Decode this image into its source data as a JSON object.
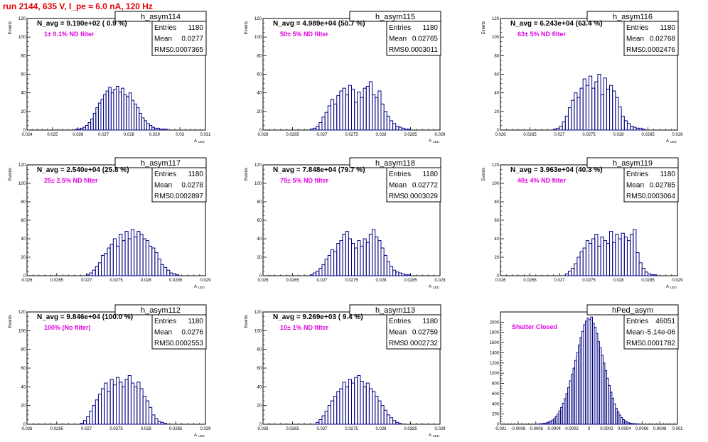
{
  "page_title": "run 2144,   635 V, I_pe ≈ 6.0 nA, 120 Hz",
  "stats_labels": [
    "Entries",
    "Mean",
    "RMS"
  ],
  "colors": {
    "histogram": "#000080",
    "annotation": "#e000e0",
    "title": "#e00000",
    "axis": "#000000"
  },
  "chart_data": [
    {
      "type": "bar",
      "title": "h_asym114",
      "navg": "N_avg = 9.190e+02 ( 0.9 %)",
      "note": "1± 0.1% ND filter",
      "stats": {
        "Entries": "1180",
        "Mean": "0.0277",
        "RMS": "0.0007365"
      },
      "ylabel": "Events",
      "xlabel": "A",
      "xlabel_sub": "LED",
      "xlim": [
        0.024,
        0.031
      ],
      "ylim": [
        0,
        120
      ],
      "xticks": [
        0.024,
        0.025,
        0.026,
        0.027,
        0.028,
        0.029,
        0.03,
        0.031
      ],
      "xtick_labels": [
        "0.024",
        "0.025",
        "0.026",
        "0.027",
        "0.028",
        "0.029",
        "0.03",
        "0.031"
      ],
      "yticks": [
        0,
        20,
        40,
        60,
        80,
        100,
        120
      ],
      "ytick_labels": [
        "0",
        "20",
        "40",
        "60",
        "80",
        "100",
        "120"
      ],
      "bins_x": [
        0.0259,
        0.026,
        0.0261,
        0.0262,
        0.0263,
        0.0264,
        0.0265,
        0.0266,
        0.0267,
        0.0268,
        0.0269,
        0.027,
        0.0271,
        0.0272,
        0.0273,
        0.0274,
        0.0275,
        0.0276,
        0.0277,
        0.0278,
        0.0279,
        0.028,
        0.0281,
        0.0282,
        0.0283,
        0.0284,
        0.0285,
        0.0286,
        0.0287,
        0.0288,
        0.0289,
        0.029,
        0.0291,
        0.0292,
        0.0293,
        0.0294,
        0.0295
      ],
      "counts": [
        1,
        1,
        2,
        3,
        5,
        8,
        12,
        18,
        24,
        29,
        33,
        38,
        42,
        46,
        40,
        44,
        47,
        41,
        45,
        38,
        36,
        40,
        32,
        28,
        24,
        18,
        13,
        10,
        7,
        5,
        3,
        2,
        2,
        1,
        1,
        1,
        0
      ],
      "bin_width": 0.0001
    },
    {
      "type": "bar",
      "title": "h_asym115",
      "navg": "N_avg = 4.989e+04 (50.7 %)",
      "note": "50± 5% ND filter",
      "stats": {
        "Entries": "1180",
        "Mean": "0.02765",
        "RMS": "0.0003011"
      },
      "ylabel": "Events",
      "xlabel": "A",
      "xlabel_sub": "LED",
      "xlim": [
        0.026,
        0.029
      ],
      "ylim": [
        0,
        120
      ],
      "xticks": [
        0.026,
        0.0265,
        0.027,
        0.0275,
        0.028,
        0.0285,
        0.029
      ],
      "xtick_labels": [
        "0.026",
        "0.0265",
        "0.027",
        "0.0275",
        "0.028",
        "0.0285",
        "0.029"
      ],
      "yticks": [
        0,
        20,
        40,
        60,
        80,
        100,
        120
      ],
      "ytick_labels": [
        "0",
        "20",
        "40",
        "60",
        "80",
        "100",
        "120"
      ],
      "bins_x": [
        0.0268,
        0.02685,
        0.0269,
        0.02695,
        0.027,
        0.02705,
        0.0271,
        0.02715,
        0.0272,
        0.02725,
        0.0273,
        0.02735,
        0.0274,
        0.02745,
        0.0275,
        0.02755,
        0.0276,
        0.02765,
        0.0277,
        0.02775,
        0.0278,
        0.02785,
        0.0279,
        0.02795,
        0.028,
        0.02805,
        0.0281,
        0.02815,
        0.0282,
        0.02825,
        0.0283,
        0.02835,
        0.0284,
        0.02845
      ],
      "counts": [
        1,
        2,
        4,
        8,
        14,
        19,
        26,
        33,
        28,
        37,
        42,
        45,
        38,
        48,
        44,
        30,
        41,
        35,
        45,
        47,
        52,
        38,
        35,
        42,
        28,
        20,
        15,
        10,
        7,
        4,
        3,
        2,
        1,
        1
      ],
      "bin_width": 5e-05
    },
    {
      "type": "bar",
      "title": "h_asym116",
      "navg": "N_avg = 6.243e+04 (63.4 %)",
      "note": "63± 5% ND filter",
      "stats": {
        "Entries": "1180",
        "Mean": "0.02768",
        "RMS": "0.0002476"
      },
      "ylabel": "Events",
      "xlabel": "A",
      "xlabel_sub": "LED",
      "xlim": [
        0.026,
        0.029
      ],
      "ylim": [
        0,
        120
      ],
      "xticks": [
        0.026,
        0.0265,
        0.027,
        0.0275,
        0.028,
        0.0285,
        0.029
      ],
      "xtick_labels": [
        "0.026",
        "0.0265",
        "0.027",
        "0.0275",
        "0.028",
        "0.0285",
        "0.029"
      ],
      "yticks": [
        0,
        20,
        40,
        60,
        80,
        100,
        120
      ],
      "ytick_labels": [
        "0",
        "20",
        "40",
        "60",
        "80",
        "100",
        "120"
      ],
      "bins_x": [
        0.0269,
        0.02695,
        0.027,
        0.02705,
        0.0271,
        0.02715,
        0.0272,
        0.02725,
        0.0273,
        0.02735,
        0.0274,
        0.02745,
        0.0275,
        0.02755,
        0.0276,
        0.02765,
        0.0277,
        0.02775,
        0.0278,
        0.02785,
        0.0279,
        0.02795,
        0.028,
        0.02805,
        0.0281,
        0.02815,
        0.0282,
        0.02825,
        0.0283,
        0.02835,
        0.0284,
        0.02845
      ],
      "counts": [
        1,
        2,
        4,
        9,
        15,
        24,
        32,
        40,
        35,
        45,
        55,
        48,
        58,
        45,
        52,
        60,
        38,
        56,
        44,
        48,
        42,
        35,
        25,
        15,
        10,
        7,
        4,
        3,
        2,
        2,
        1,
        0
      ],
      "bin_width": 5e-05
    },
    {
      "type": "bar",
      "title": "h_asym117",
      "navg": "N_avg = 2.540e+04 (25.8 %)",
      "note": "25± 2.5% ND filter",
      "stats": {
        "Entries": "1180",
        "Mean": "0.0278",
        "RMS": "0.0002897"
      },
      "ylabel": "Events",
      "xlabel": "A",
      "xlabel_sub": "LED",
      "xlim": [
        0.026,
        0.029
      ],
      "ylim": [
        0,
        120
      ],
      "xticks": [
        0.026,
        0.0265,
        0.027,
        0.0275,
        0.028,
        0.0285,
        0.029
      ],
      "xtick_labels": [
        "0.026",
        "0.0265",
        "0.027",
        "0.0275",
        "0.028",
        "0.0285",
        "0.029"
      ],
      "yticks": [
        0,
        20,
        40,
        60,
        80,
        100,
        120
      ],
      "ytick_labels": [
        "0",
        "20",
        "40",
        "60",
        "80",
        "100",
        "120"
      ],
      "bins_x": [
        0.027,
        0.02705,
        0.0271,
        0.02715,
        0.0272,
        0.02725,
        0.0273,
        0.02735,
        0.0274,
        0.02745,
        0.0275,
        0.02755,
        0.0276,
        0.02765,
        0.0277,
        0.02775,
        0.0278,
        0.02785,
        0.0279,
        0.02795,
        0.028,
        0.02805,
        0.0281,
        0.02815,
        0.0282,
        0.02825,
        0.0283,
        0.02835,
        0.0284,
        0.02845,
        0.0285
      ],
      "counts": [
        1,
        3,
        6,
        10,
        14,
        22,
        24,
        30,
        34,
        40,
        32,
        45,
        38,
        48,
        40,
        50,
        42,
        48,
        45,
        40,
        38,
        32,
        30,
        25,
        18,
        12,
        9,
        6,
        3,
        2,
        1
      ],
      "bin_width": 5e-05
    },
    {
      "type": "bar",
      "title": "h_asym118",
      "navg": "N_avg = 7.848e+04 (79.7 %)",
      "note": "79± 5% ND filter",
      "stats": {
        "Entries": "1180",
        "Mean": "0.02772",
        "RMS": "0.0003029"
      },
      "ylabel": "Events",
      "xlabel": "A",
      "xlabel_sub": "LED",
      "xlim": [
        0.026,
        0.029
      ],
      "ylim": [
        0,
        120
      ],
      "xticks": [
        0.026,
        0.0265,
        0.027,
        0.0275,
        0.028,
        0.0285,
        0.029
      ],
      "xtick_labels": [
        "0.026",
        "0.0265",
        "0.027",
        "0.0275",
        "0.028",
        "0.0285",
        "0.029"
      ],
      "yticks": [
        0,
        20,
        40,
        60,
        80,
        100,
        120
      ],
      "ytick_labels": [
        "0",
        "20",
        "40",
        "60",
        "80",
        "100",
        "120"
      ],
      "bins_x": [
        0.0268,
        0.02685,
        0.0269,
        0.02695,
        0.027,
        0.02705,
        0.0271,
        0.02715,
        0.0272,
        0.02725,
        0.0273,
        0.02735,
        0.0274,
        0.02745,
        0.0275,
        0.02755,
        0.0276,
        0.02765,
        0.0277,
        0.02775,
        0.0278,
        0.02785,
        0.0279,
        0.02795,
        0.028,
        0.02805,
        0.0281,
        0.02815,
        0.0282,
        0.02825,
        0.0283,
        0.02835,
        0.0284,
        0.02845,
        0.0285
      ],
      "counts": [
        1,
        3,
        5,
        8,
        12,
        18,
        22,
        28,
        26,
        35,
        38,
        45,
        48,
        40,
        35,
        30,
        38,
        32,
        40,
        36,
        45,
        50,
        42,
        38,
        30,
        22,
        15,
        10,
        6,
        4,
        3,
        2,
        1,
        1,
        0
      ],
      "bin_width": 5e-05
    },
    {
      "type": "bar",
      "title": "h_asym119",
      "navg": "N_avg = 3.963e+04 (40.3 %)",
      "note": "40± 4% ND filter",
      "stats": {
        "Entries": "1180",
        "Mean": "0.02785",
        "RMS": "0.0003064"
      },
      "ylabel": "Events",
      "xlabel": "A",
      "xlabel_sub": "LED",
      "xlim": [
        0.026,
        0.029
      ],
      "ylim": [
        0,
        120
      ],
      "xticks": [
        0.026,
        0.0265,
        0.027,
        0.0275,
        0.028,
        0.0285,
        0.029
      ],
      "xtick_labels": [
        "0.026",
        "0.0265",
        "0.027",
        "0.0275",
        "0.028",
        "0.0285",
        "0.029"
      ],
      "yticks": [
        0,
        20,
        40,
        60,
        80,
        100,
        120
      ],
      "ytick_labels": [
        "0",
        "20",
        "40",
        "60",
        "80",
        "100",
        "120"
      ],
      "bins_x": [
        0.0271,
        0.02715,
        0.0272,
        0.02725,
        0.0273,
        0.02735,
        0.0274,
        0.02745,
        0.0275,
        0.02755,
        0.0276,
        0.02765,
        0.0277,
        0.02775,
        0.0278,
        0.02785,
        0.0279,
        0.02795,
        0.028,
        0.02805,
        0.0281,
        0.02815,
        0.0282,
        0.02825,
        0.0283,
        0.02835,
        0.0284,
        0.02845,
        0.0285,
        0.02855,
        0.0286
      ],
      "counts": [
        2,
        5,
        8,
        13,
        20,
        26,
        30,
        38,
        35,
        40,
        45,
        32,
        42,
        38,
        35,
        48,
        36,
        45,
        40,
        46,
        42,
        38,
        45,
        50,
        25,
        14,
        8,
        4,
        2,
        1,
        1
      ],
      "bin_width": 5e-05
    },
    {
      "type": "bar",
      "title": "h_asym112",
      "navg": "N_avg = 9.846e+04 (100.0 %)",
      "note": "100% (No filter)",
      "stats": {
        "Entries": "1180",
        "Mean": "0.0276",
        "RMS": "0.0002553"
      },
      "ylabel": "Events",
      "xlabel": "A",
      "xlabel_sub": "LED",
      "xlim": [
        0.026,
        0.029
      ],
      "ylim": [
        0,
        120
      ],
      "xticks": [
        0.026,
        0.0265,
        0.027,
        0.0275,
        0.028,
        0.0285,
        0.029
      ],
      "xtick_labels": [
        "0.026",
        "0.0265",
        "0.027",
        "0.0275",
        "0.028",
        "0.0285",
        "0.029"
      ],
      "yticks": [
        0,
        20,
        40,
        60,
        80,
        100,
        120
      ],
      "ytick_labels": [
        "0",
        "20",
        "40",
        "60",
        "80",
        "100",
        "120"
      ],
      "bins_x": [
        0.0269,
        0.02695,
        0.027,
        0.02705,
        0.0271,
        0.02715,
        0.0272,
        0.02725,
        0.0273,
        0.02735,
        0.0274,
        0.02745,
        0.0275,
        0.02755,
        0.0276,
        0.02765,
        0.0277,
        0.02775,
        0.0278,
        0.02785,
        0.0279,
        0.02795,
        0.028,
        0.02805,
        0.0281,
        0.02815,
        0.0282,
        0.02825,
        0.0283
      ],
      "counts": [
        1,
        4,
        8,
        14,
        20,
        26,
        32,
        38,
        44,
        35,
        48,
        42,
        50,
        45,
        40,
        48,
        52,
        44,
        40,
        45,
        38,
        30,
        25,
        18,
        10,
        6,
        3,
        2,
        1
      ],
      "bin_width": 5e-05
    },
    {
      "type": "bar",
      "title": "h_asym113",
      "navg": "N_avg = 9.269e+03 ( 9.4 %)",
      "note": "10± 1% ND filter",
      "stats": {
        "Entries": "1180",
        "Mean": "0.02759",
        "RMS": "0.0002732"
      },
      "ylabel": "Events",
      "xlabel": "A",
      "xlabel_sub": "LED",
      "xlim": [
        0.026,
        0.029
      ],
      "ylim": [
        0,
        120
      ],
      "xticks": [
        0.026,
        0.0265,
        0.027,
        0.0275,
        0.028,
        0.0285,
        0.029
      ],
      "xtick_labels": [
        "0.026",
        "0.0265",
        "0.027",
        "0.0275",
        "0.028",
        "0.0285",
        "0.029"
      ],
      "yticks": [
        0,
        20,
        40,
        60,
        80,
        100,
        120
      ],
      "ytick_labels": [
        "0",
        "20",
        "40",
        "60",
        "80",
        "100",
        "120"
      ],
      "bins_x": [
        0.0269,
        0.02695,
        0.027,
        0.02705,
        0.0271,
        0.02715,
        0.0272,
        0.02725,
        0.0273,
        0.02735,
        0.0274,
        0.02745,
        0.0275,
        0.02755,
        0.0276,
        0.02765,
        0.0277,
        0.02775,
        0.0278,
        0.02785,
        0.0279,
        0.02795,
        0.028,
        0.02805,
        0.0281,
        0.02815,
        0.0282,
        0.02825,
        0.0283
      ],
      "counts": [
        2,
        5,
        9,
        14,
        20,
        25,
        30,
        35,
        38,
        45,
        40,
        48,
        44,
        50,
        52,
        46,
        40,
        44,
        38,
        35,
        30,
        25,
        20,
        15,
        10,
        7,
        4,
        2,
        1
      ],
      "bin_width": 5e-05
    },
    {
      "type": "bar",
      "title": "hPed_asym",
      "navg": "",
      "note": "Shutter Closed",
      "stats": {
        "Entries": "46051",
        "Mean": "-5.14e-06",
        "RMS": "0.0001782"
      },
      "ylabel": "",
      "xlabel": "",
      "xlabel_sub": "",
      "xlim": [
        -0.001,
        0.001
      ],
      "ylim": [
        0,
        2200
      ],
      "xticks": [
        -0.001,
        -0.0008,
        -0.0006,
        -0.0004,
        -0.0002,
        0,
        0.0002,
        0.0004,
        0.0006,
        0.0008,
        0.001
      ],
      "xtick_labels": [
        "-0.001",
        "-0.0008",
        "-0.0006",
        "-0.0004",
        "-0.0002",
        "0",
        "0.0002",
        "0.0004",
        "0.0006",
        "0.0008",
        "0.001"
      ],
      "yticks": [
        0,
        200,
        400,
        600,
        800,
        1000,
        1200,
        1400,
        1600,
        1800,
        2000
      ],
      "ytick_labels": [
        "0",
        "200",
        "400",
        "600",
        "800",
        "1000",
        "1200",
        "1400",
        "1600",
        "1800",
        "2000"
      ],
      "bins_x": [
        -0.0006,
        -0.00058,
        -0.00056,
        -0.00054,
        -0.00052,
        -0.0005,
        -0.00048,
        -0.00046,
        -0.00044,
        -0.00042,
        -0.0004,
        -0.00038,
        -0.00036,
        -0.00034,
        -0.00032,
        -0.0003,
        -0.00028,
        -0.00026,
        -0.00024,
        -0.00022,
        -0.0002,
        -0.00018,
        -0.00016,
        -0.00014,
        -0.00012,
        -0.0001,
        -8e-05,
        -6e-05,
        -4e-05,
        -2e-05,
        0.0,
        2e-05,
        4e-05,
        6e-05,
        8e-05,
        0.0001,
        0.00012,
        0.00014,
        0.00016,
        0.00018,
        0.0002,
        0.00022,
        0.00024,
        0.00026,
        0.00028,
        0.0003,
        0.00032,
        0.00034,
        0.00036,
        0.00038,
        0.0004,
        0.00042,
        0.00044,
        0.00046,
        0.00048,
        0.0005,
        0.00052,
        0.00054,
        0.00056,
        0.00058
      ],
      "counts": [
        2,
        4,
        6,
        10,
        15,
        22,
        30,
        45,
        60,
        80,
        110,
        150,
        200,
        260,
        330,
        410,
        500,
        600,
        720,
        850,
        980,
        1100,
        1250,
        1400,
        1550,
        1700,
        1820,
        1950,
        2020,
        2080,
        2050,
        2100,
        1980,
        1900,
        1780,
        1620,
        1500,
        1350,
        1200,
        1050,
        900,
        760,
        630,
        510,
        400,
        310,
        240,
        180,
        130,
        90,
        65,
        45,
        30,
        20,
        14,
        9,
        6,
        4,
        2,
        1
      ],
      "bin_width": 2e-05
    }
  ]
}
